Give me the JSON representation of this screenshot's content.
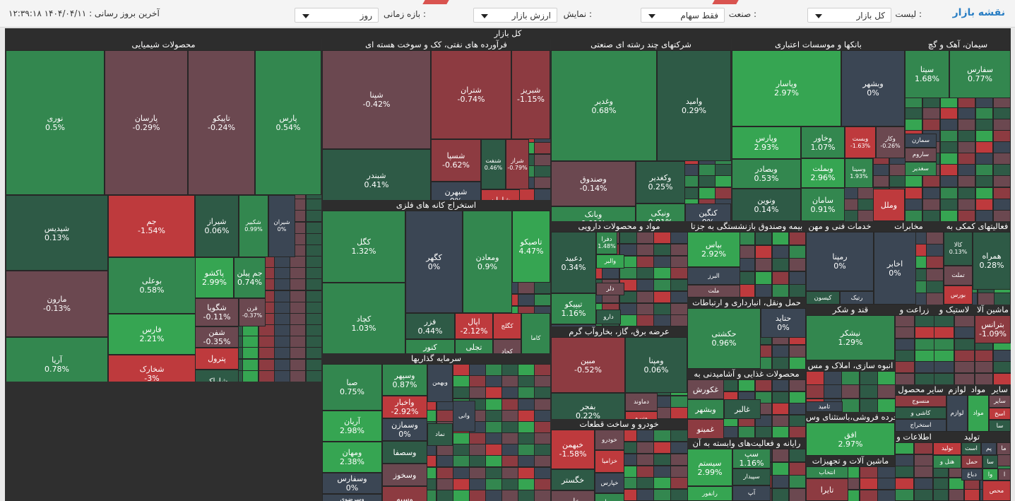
{
  "toolbar": {
    "title": "نقشه بازار",
    "list_label": "لیست :",
    "list_value": "کل بازار",
    "industry_label": "صنعت :",
    "industry_value": "فقط سهام",
    "display_label": "نمایش :",
    "display_value": "ارزش بازار",
    "period_label": "بازه زمانی :",
    "period_value": "روز",
    "last_update": "آخرین بروز رسانی : ۱۴۰۴/۰۴/۱۱ ۱۲:۳۹:۱۸"
  },
  "colors": {
    "dgreen": "#2e5a46",
    "green": "#33874f",
    "lgreen": "#36a552",
    "neutral": "#3b4654",
    "dred": "#6b4850",
    "red": "#8d3b41",
    "lred": "#be3a3d"
  },
  "map": {
    "title": "کل بازار",
    "sectors": [
      {
        "name": "محصولات شیمیایی",
        "tiles": [
          {
            "n": "نوری",
            "p": "0.5%"
          },
          {
            "n": "پارسان",
            "p": "-0.29%"
          },
          {
            "n": "تاپیکو",
            "p": "-0.24%"
          },
          {
            "n": "پارس",
            "p": "0.54%"
          },
          {
            "n": "شپدیس",
            "p": "0.13%"
          },
          {
            "n": "جم",
            "p": "-1.54%"
          },
          {
            "n": "شیراز",
            "p": "0.06%"
          },
          {
            "n": "شکبیر",
            "p": "0.99%"
          },
          {
            "n": "شیران",
            "p": "0%"
          },
          {
            "n": "بوعلی",
            "p": "0.58%"
          },
          {
            "n": "پاکشو",
            "p": "2.99%"
          },
          {
            "n": "جم پیلن",
            "p": "0.74%"
          },
          {
            "n": "مارون",
            "p": "-0.13%"
          },
          {
            "n": "فارس",
            "p": "2.21%"
          },
          {
            "n": "شگویا",
            "p": "-0.11%"
          },
          {
            "n": "قرن",
            "p": "-0.37%"
          },
          {
            "n": "شفن",
            "p": "-0.35%"
          },
          {
            "n": "آریا",
            "p": "0.78%"
          },
          {
            "n": "شخارک",
            "p": "-3%"
          },
          {
            "n": "پترول",
            "p": ""
          },
          {
            "n": "شاراک",
            "p": ""
          }
        ]
      },
      {
        "name": "فرآورده های نفتی، کک و سوخت هسته ای",
        "tiles": [
          {
            "n": "شپنا",
            "p": "-0.42%"
          },
          {
            "n": "شتران",
            "p": "-0.74%"
          },
          {
            "n": "شبریز",
            "p": "-1.15%"
          },
          {
            "n": "شبندر",
            "p": "0.41%"
          },
          {
            "n": "شسپا",
            "p": "-0.62%"
          },
          {
            "n": "شنفت",
            "p": "0.46%"
          },
          {
            "n": "شراز",
            "p": "-0.79%"
          },
          {
            "n": "شبهرن",
            "p": "0%"
          },
          {
            "n": "شاوان",
            "p": ""
          }
        ]
      },
      {
        "name": "استخراج کانه های فلزی",
        "tiles": [
          {
            "n": "کگل",
            "p": "1.32%"
          },
          {
            "n": "کگهر",
            "p": "0%"
          },
          {
            "n": "ومعادن",
            "p": "0.9%"
          },
          {
            "n": "تاصیکو",
            "p": "4.47%"
          },
          {
            "n": "کچاد",
            "p": "1.03%"
          },
          {
            "n": "فزر",
            "p": "0.44%"
          },
          {
            "n": "اپال",
            "p": "-2.12%"
          },
          {
            "n": "کگلج",
            "p": ""
          },
          {
            "n": "کنور",
            "p": "1.64%"
          },
          {
            "n": "تجلی",
            "p": "1.01%"
          },
          {
            "n": "کجاد",
            "p": ""
          },
          {
            "n": "کاما",
            "p": ""
          }
        ]
      },
      {
        "name": "سرمایه گذاریها",
        "tiles": [
          {
            "n": "صبا",
            "p": "0.75%"
          },
          {
            "n": "وسپهر",
            "p": "0.87%"
          },
          {
            "n": "واخبار",
            "p": "-2.92%"
          },
          {
            "n": "وبهمن",
            "p": ""
          },
          {
            "n": "آریان",
            "p": "2.98%"
          },
          {
            "n": "وسمازن",
            "p": "0%"
          },
          {
            "n": "ومهان",
            "p": "2.38%"
          },
          {
            "n": "وسصفا",
            "p": ""
          },
          {
            "n": "وسفارس",
            "p": "0%"
          },
          {
            "n": "وسخوز",
            "p": ""
          },
          {
            "n": "وسرضوی",
            "p": "0%"
          },
          {
            "n": "وسپه",
            "p": ""
          },
          {
            "n": "نماد",
            "p": ""
          },
          {
            "n": "وانی",
            "p": ""
          }
        ]
      },
      {
        "name": "شرکتهای چند رشته ای صنعتی",
        "tiles": [
          {
            "n": "وغدیر",
            "p": "0.68%"
          },
          {
            "n": "وامید",
            "p": "0.29%"
          },
          {
            "n": "وصندوق",
            "p": "-0.14%"
          },
          {
            "n": "وکغدیر",
            "p": "0.25%"
          },
          {
            "n": "وبانک",
            "p": "0.91%"
          },
          {
            "n": "ونیکی",
            "p": "0.81%"
          },
          {
            "n": "کنگین",
            "p": "0%"
          }
        ]
      },
      {
        "name": "مواد و محصولات دارویی",
        "tiles": [
          {
            "n": "دعبید",
            "p": "0.34%"
          },
          {
            "n": "دفرا",
            "p": "1.48%"
          },
          {
            "n": "والبر",
            "p": ""
          },
          {
            "n": "دلر",
            "p": ""
          },
          {
            "n": "تیپیکو",
            "p": "1.16%"
          },
          {
            "n": "دارو",
            "p": ""
          },
          {
            "n": "وپخش",
            "p": ""
          }
        ]
      },
      {
        "name": "عرضه برق، گاز، بخاروآب گرم",
        "tiles": [
          {
            "n": "مبین",
            "p": "-0.52%"
          },
          {
            "n": "ومپنا",
            "p": "0.06%"
          },
          {
            "n": "دماوند",
            "p": ""
          },
          {
            "n": "ونیرو",
            "p": ""
          },
          {
            "n": "بفجر",
            "p": "0.22%"
          },
          {
            "n": "بگیلان",
            "p": ""
          }
        ]
      },
      {
        "name": "خودرو و ساخت قطعات",
        "tiles": [
          {
            "n": "خبهمن",
            "p": "-1.58%"
          },
          {
            "n": "خودرو",
            "p": ""
          },
          {
            "n": "خزامیا",
            "p": ""
          },
          {
            "n": "خگستر",
            "p": ""
          },
          {
            "n": "خپارس",
            "p": ""
          },
          {
            "n": "خاور",
            "p": ""
          },
          {
            "n": "ورنا",
            "p": ""
          }
        ]
      },
      {
        "name": "بانکها و موسسات اعتباری",
        "tiles": [
          {
            "n": "وپاسار",
            "p": "2.97%"
          },
          {
            "n": "وبشهر",
            "p": "0%"
          },
          {
            "n": "وپارس",
            "p": "2.93%"
          },
          {
            "n": "وخاور",
            "p": "1.07%"
          },
          {
            "n": "وبست",
            "p": "-1.63%"
          },
          {
            "n": "وکار",
            "p": "-0.26%"
          },
          {
            "n": "وبصادر",
            "p": "0.53%"
          },
          {
            "n": "وبملت",
            "p": "2.96%"
          },
          {
            "n": "وسینا",
            "p": "1.93%"
          },
          {
            "n": "ونوین",
            "p": "0.14%"
          },
          {
            "n": "سامان",
            "p": "0.91%"
          },
          {
            "n": "وملل",
            "p": ""
          }
        ]
      },
      {
        "name": "سیمان، آهک و گچ",
        "tiles": [
          {
            "n": "سیتا",
            "p": "1.68%"
          },
          {
            "n": "سفارس",
            "p": "0.77%"
          },
          {
            "n": "سمازن",
            "p": ""
          },
          {
            "n": "ساروم",
            "p": ""
          },
          {
            "n": "سغدیر",
            "p": ""
          }
        ]
      },
      {
        "name": "بیمه وصندوق بازنشستگی به جزتا",
        "tiles": [
          {
            "n": "بپاس",
            "p": "2.92%"
          },
          {
            "n": "البرز",
            "p": ""
          },
          {
            "n": "ملت",
            "p": ""
          }
        ]
      },
      {
        "name": "حمل ونقل، انبارداری و ارتباطات",
        "tiles": [
          {
            "n": "حکشتی",
            "p": "0.96%"
          },
          {
            "n": "حتاید",
            "p": "0%"
          }
        ]
      },
      {
        "name": "محصولات غذایی و آشامیدنی به",
        "tiles": [
          {
            "n": "غکورش",
            "p": ""
          },
          {
            "n": "وبشهر",
            "p": ""
          },
          {
            "n": "غمینو",
            "p": ""
          },
          {
            "n": "غالبر",
            "p": ""
          }
        ]
      },
      {
        "name": "رایانه و فعالیت‌های وابسته به آن",
        "tiles": [
          {
            "n": "سیستم",
            "p": "2.99%"
          },
          {
            "n": "سپ",
            "p": "1.16%"
          },
          {
            "n": "سپیدار",
            "p": ""
          },
          {
            "n": "آپ",
            "p": ""
          },
          {
            "n": "رانفور",
            "p": ""
          }
        ]
      },
      {
        "name": "خدمات فنی و مهن",
        "tiles": [
          {
            "n": "رمپنا",
            "p": "0%"
          },
          {
            "n": "کیسون",
            "p": ""
          },
          {
            "n": "رتیک",
            "p": ""
          }
        ]
      },
      {
        "name": "مخابرات",
        "tiles": [
          {
            "n": "اخابر",
            "p": "0%"
          }
        ]
      },
      {
        "name": "فعالیتهای کمکی به",
        "tiles": [
          {
            "n": "کالا",
            "p": "0.13%"
          },
          {
            "n": "همراه",
            "p": "0.28%"
          },
          {
            "n": "تملت",
            "p": ""
          },
          {
            "n": "بورس",
            "p": ""
          }
        ]
      },
      {
        "name": "قند و شکر",
        "tiles": [
          {
            "n": "نیشکر",
            "p": "1.29%"
          }
        ]
      },
      {
        "name": "زراعت و",
        "tiles": []
      },
      {
        "name": "لاستیک و",
        "tiles": []
      },
      {
        "name": "ماشین آلا",
        "tiles": [
          {
            "n": "بترانس",
            "p": "-1.09%"
          }
        ]
      },
      {
        "name": "انبوه سازی، املاک و مس",
        "tiles": [
          {
            "n": "ثامید",
            "p": ""
          }
        ]
      },
      {
        "name": "خرده فروشی،باستثنای وس",
        "tiles": [
          {
            "n": "افق",
            "p": "2.97%"
          }
        ]
      },
      {
        "name": "ماشین آلات و تجهیزات",
        "tiles": [
          {
            "n": "انتخاب",
            "p": ""
          },
          {
            "n": "تایرا",
            "p": ""
          }
        ]
      },
      {
        "name": "سایر محصول",
        "tiles": [
          {
            "n": "منسوج",
            "p": ""
          },
          {
            "n": "کاشی و",
            "p": ""
          },
          {
            "n": "استخراج",
            "p": ""
          }
        ]
      },
      {
        "name": "اطلاعات و",
        "tiles": []
      },
      {
        "name": "لوازم",
        "tiles": [
          {
            "n": "لوازم",
            "p": ""
          }
        ]
      },
      {
        "name": "مواد",
        "tiles": [
          {
            "n": "مواد",
            "p": ""
          }
        ]
      },
      {
        "name": "سایر",
        "tiles": [
          {
            "n": "سایر",
            "p": ""
          },
          {
            "n": "اسخ",
            "p": ""
          },
          {
            "n": "سا",
            "p": ""
          }
        ]
      },
      {
        "name": "تولید",
        "tiles": [
          {
            "n": "تولید",
            "p": ""
          },
          {
            "n": "است",
            "p": ""
          },
          {
            "n": "پم",
            "p": ""
          },
          {
            "n": "ما",
            "p": ""
          },
          {
            "n": "هتل و",
            "p": ""
          },
          {
            "n": "حمل",
            "p": ""
          },
          {
            "n": "سا",
            "p": ""
          },
          {
            "n": "دباغ",
            "p": ""
          },
          {
            "n": "وا",
            "p": ""
          },
          {
            "n": "ا",
            "p": ""
          },
          {
            "n": "محص",
            "p": ""
          }
        ]
      }
    ]
  }
}
